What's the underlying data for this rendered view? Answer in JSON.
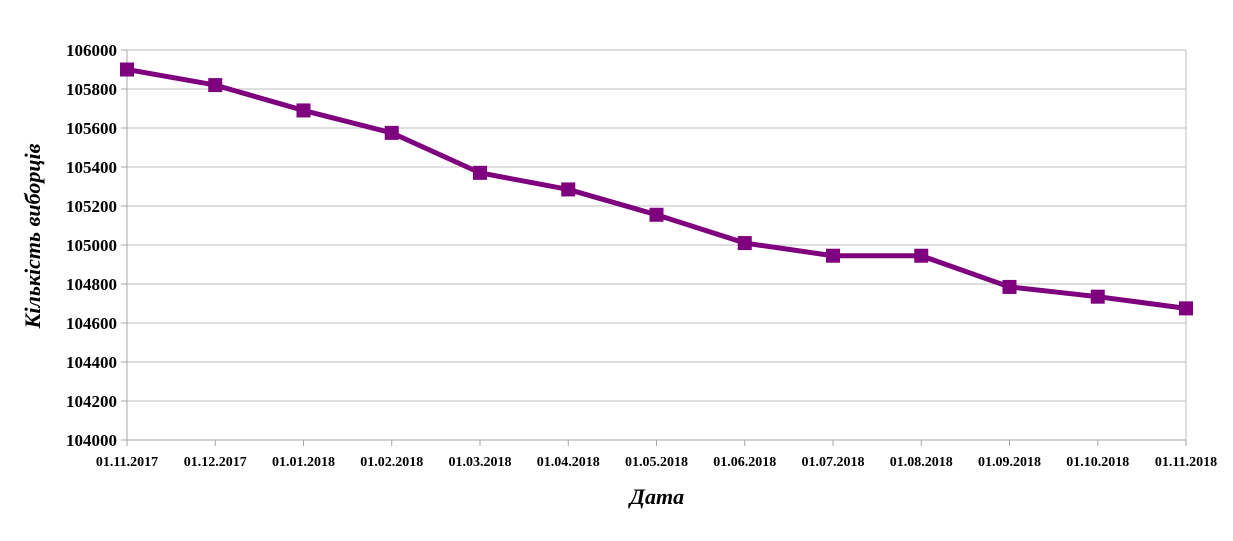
{
  "chart_data": {
    "type": "line",
    "title": "",
    "xlabel": "Дата",
    "ylabel": "Кількість виборців",
    "ylim": [
      104000,
      106000
    ],
    "y_ticks": [
      "104000",
      "104200",
      "104400",
      "104600",
      "104800",
      "105000",
      "105200",
      "105400",
      "105600",
      "105800",
      "106000"
    ],
    "grid": true,
    "legend": "none",
    "colors": {
      "series": "#7f007f",
      "grid": "#bfbfbf",
      "axis": "#a6a6a6"
    },
    "categories": [
      "01.11.2017",
      "01.12.2017",
      "01.01.2018",
      "01.02.2018",
      "01.03.2018",
      "01.04.2018",
      "01.05.2018",
      "01.06.2018",
      "01.07.2018",
      "01.08.2018",
      "01.09.2018",
      "01.10.2018",
      "01.11.2018"
    ],
    "series": [
      {
        "values": [
          105900,
          105820,
          105690,
          105575,
          105370,
          105285,
          105155,
          105010,
          104945,
          104945,
          104785,
          104735,
          104675
        ]
      }
    ]
  }
}
